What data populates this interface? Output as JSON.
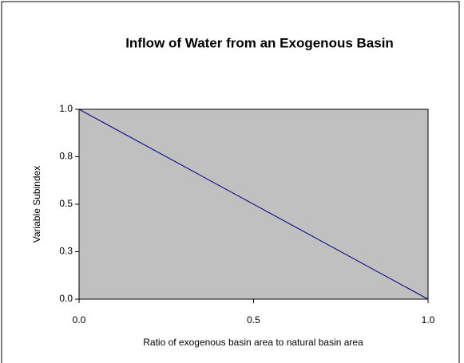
{
  "chart_data": {
    "type": "line",
    "title": "Inflow of Water from an Exogenous Basin",
    "x_label": "Ratio of exogenous basin area to natural basin area",
    "y_label": "Variable Subindex",
    "x": [
      0,
      1
    ],
    "series": [
      {
        "name": "Variable Subindex",
        "color": "#000080",
        "values": [
          1,
          0
        ]
      }
    ],
    "xlim": [
      0,
      1
    ],
    "xticks": [
      {
        "value": 0,
        "label": "0.0"
      },
      {
        "value": 0.5,
        "label": "0.5"
      },
      {
        "value": 1,
        "label": "1.0"
      }
    ],
    "ylim": [
      0,
      1
    ],
    "yticks": [
      {
        "value": 0,
        "label": "0.0"
      },
      {
        "value": 0.25,
        "label": "0.3"
      },
      {
        "value": 0.5,
        "label": "0.5"
      },
      {
        "value": 0.75,
        "label": "0.8"
      },
      {
        "value": 1,
        "label": "1.0"
      }
    ],
    "grid": false,
    "plot_background": "#c0c0c0"
  }
}
